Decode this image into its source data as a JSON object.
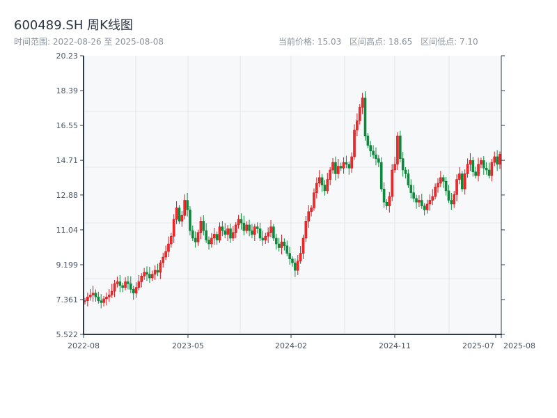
{
  "header": {
    "title": "600489.SH 周K线图",
    "range_label": "时间范围: 2022-08-26 至 2025-08-08",
    "current_price": "当前价格: 15.03",
    "range_high": "区间高点: 18.65",
    "range_low": "区间低点: 7.10"
  },
  "colors": {
    "up": "#d7141a",
    "down": "#0a8a3a",
    "axis": "#2e3a4a",
    "grid": "#e3e6ea",
    "plot_bg": "#f7f8fa"
  },
  "chart_data": {
    "type": "candlestick",
    "frequency": "weekly",
    "start": "2022-08-26",
    "end": "2025-08-08",
    "ylim": [
      5.522,
      20.23
    ],
    "y_ticks": [
      "5.522",
      "7.361",
      "9.199",
      "11.04",
      "12.88",
      "14.71",
      "16.55",
      "18.39",
      "20.23"
    ],
    "x_ticks": [
      "2022-08",
      "2023-05",
      "2024-02",
      "2024-11",
      "2025-07",
      "2025-08"
    ],
    "first_open": 7.25,
    "close": [
      7.3,
      7.5,
      7.6,
      7.7,
      7.5,
      7.3,
      7.2,
      7.4,
      7.5,
      7.6,
      7.8,
      8.2,
      8.3,
      8.1,
      8.0,
      8.3,
      8.2,
      7.9,
      7.7,
      8.0,
      8.3,
      8.6,
      8.8,
      8.7,
      8.5,
      8.7,
      8.9,
      8.8,
      9.3,
      9.6,
      9.9,
      10.3,
      10.7,
      11.6,
      12.2,
      11.5,
      11.8,
      12.6,
      12.1,
      11.0,
      10.6,
      10.4,
      10.9,
      11.5,
      11.0,
      10.5,
      10.3,
      10.6,
      10.8,
      10.5,
      11.2,
      11.0,
      10.8,
      11.1,
      10.6,
      10.9,
      11.3,
      11.6,
      11.4,
      11.0,
      11.3,
      11.0,
      10.8,
      11.2,
      11.1,
      10.6,
      10.5,
      10.7,
      10.9,
      11.2,
      10.6,
      10.3,
      10.1,
      10.4,
      10.2,
      9.8,
      9.5,
      9.3,
      8.9,
      9.4,
      9.8,
      10.6,
      11.5,
      12.0,
      12.2,
      13.0,
      13.5,
      13.8,
      13.4,
      13.1,
      13.7,
      14.2,
      14.6,
      14.0,
      14.4,
      14.3,
      14.6,
      14.5,
      14.3,
      14.9,
      16.3,
      16.8,
      17.5,
      18.0,
      16.0,
      15.5,
      15.2,
      15.0,
      14.8,
      14.6,
      13.2,
      12.5,
      12.3,
      12.8,
      14.2,
      14.5,
      16.0,
      14.8,
      14.2,
      14.0,
      13.4,
      13.0,
      12.7,
      12.5,
      12.6,
      12.3,
      12.1,
      12.4,
      12.6,
      12.8,
      13.3,
      13.5,
      13.8,
      13.6,
      13.1,
      12.6,
      12.4,
      12.9,
      13.7,
      14.0,
      13.2,
      14.0,
      14.5,
      14.7,
      14.1,
      13.9,
      14.5,
      14.7,
      14.3,
      14.2,
      13.9,
      14.6,
      14.9,
      14.5,
      15.03
    ]
  }
}
